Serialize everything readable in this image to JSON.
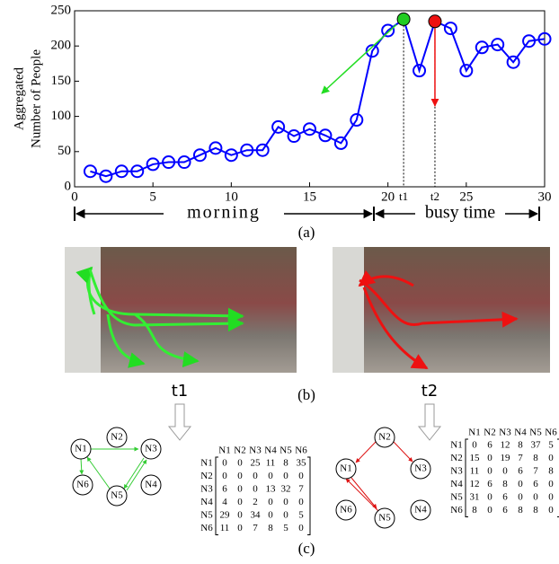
{
  "chart_data": {
    "type": "line",
    "y_label_lines": [
      "Aggregated",
      "Number of People"
    ],
    "x": [
      1,
      2,
      3,
      4,
      5,
      6,
      7,
      8,
      9,
      10,
      11,
      12,
      13,
      14,
      15,
      16,
      17,
      18,
      19,
      20,
      21,
      22,
      23,
      24,
      25,
      26,
      27,
      28,
      29,
      30
    ],
    "values": [
      22,
      15,
      22,
      22,
      32,
      35,
      35,
      45,
      55,
      45,
      52,
      52,
      85,
      72,
      82,
      73,
      62,
      95,
      193,
      222,
      238,
      165,
      235,
      225,
      165,
      198,
      202,
      177,
      207,
      210
    ],
    "color": "#0000ff",
    "xlim": [
      0,
      30
    ],
    "ylim": [
      0,
      250
    ],
    "xticks": [
      0,
      5,
      10,
      15,
      20,
      25,
      30
    ],
    "yticks": [
      0,
      50,
      100,
      150,
      200,
      250
    ],
    "time_marks": [
      "t1",
      "t2"
    ],
    "periods": [
      "morning",
      "busy time"
    ],
    "caption": "(a)"
  },
  "panel_b": {
    "labels": [
      "t1",
      "t2"
    ],
    "caption": "(b)"
  },
  "panel_c": {
    "caption": "(c)",
    "headers": [
      "N1",
      "N2",
      "N3",
      "N4",
      "N5",
      "N6"
    ],
    "left": {
      "matrix": [
        [
          0,
          0,
          25,
          11,
          8,
          35
        ],
        [
          0,
          0,
          0,
          0,
          0,
          0
        ],
        [
          6,
          0,
          0,
          13,
          32,
          7
        ],
        [
          4,
          0,
          2,
          0,
          0,
          0
        ],
        [
          29,
          0,
          34,
          0,
          0,
          5
        ],
        [
          11,
          0,
          7,
          8,
          5,
          0
        ]
      ]
    },
    "right": {
      "matrix": [
        [
          0,
          6,
          12,
          8,
          37,
          5
        ],
        [
          15,
          0,
          19,
          7,
          8,
          0
        ],
        [
          11,
          0,
          0,
          6,
          7,
          8
        ],
        [
          12,
          6,
          8,
          0,
          6,
          0
        ],
        [
          31,
          0,
          6,
          0,
          0,
          0
        ],
        [
          8,
          0,
          6,
          8,
          8,
          0
        ]
      ]
    }
  }
}
